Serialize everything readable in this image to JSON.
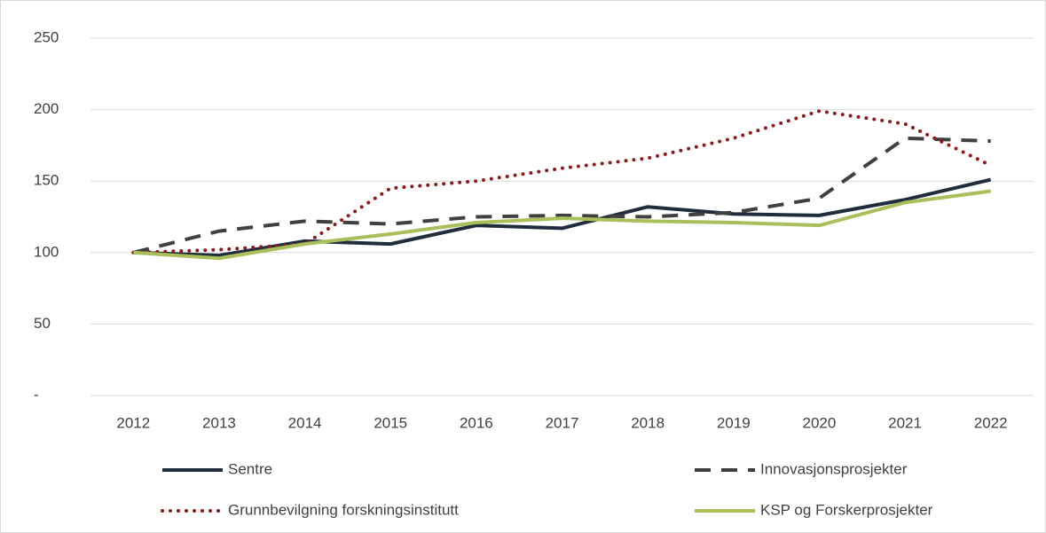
{
  "chart_data": {
    "type": "line",
    "categories": [
      "2012",
      "2013",
      "2014",
      "2015",
      "2016",
      "2017",
      "2018",
      "2019",
      "2020",
      "2021",
      "2022"
    ],
    "series": [
      {
        "name": "Sentre",
        "color": "#1f2d3d",
        "dash": "solid",
        "values": [
          100,
          98,
          108,
          106,
          119,
          117,
          132,
          127,
          126,
          137,
          151
        ]
      },
      {
        "name": "Innovasjonsprosjekter",
        "color": "#404040",
        "dash": "dashed",
        "values": [
          100,
          115,
          122,
          120,
          125,
          126,
          125,
          128,
          138,
          180,
          178
        ]
      },
      {
        "name": "Grunnbevilgning forskningsinstitutt",
        "color": "#8b1a1a",
        "dash": "dotted",
        "values": [
          100,
          102,
          106,
          145,
          150,
          159,
          166,
          180,
          199,
          190,
          161
        ]
      },
      {
        "name": "KSP og Forskerprosjekter",
        "color": "#a9c05a",
        "dash": "solid",
        "values": [
          100,
          96,
          106,
          113,
          121,
          124,
          122,
          121,
          119,
          135,
          143
        ]
      }
    ],
    "ylim": [
      0,
      250
    ],
    "yticks": [
      {
        "value": 0,
        "label": "-"
      },
      50,
      100,
      150,
      200,
      250
    ],
    "grid": true
  }
}
